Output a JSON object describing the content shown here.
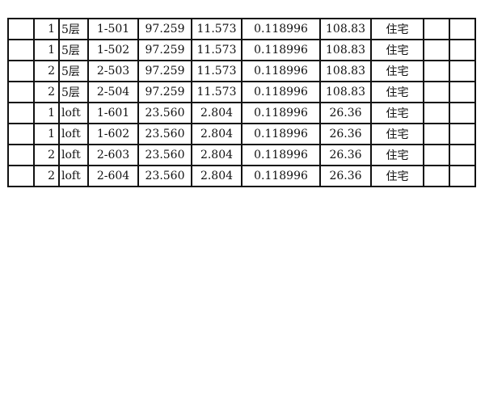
{
  "rows": [
    [
      "",
      "1",
      "5层",
      "1-501",
      "97.259",
      "11.573",
      "0.118996",
      "108.83",
      "住宅",
      "",
      ""
    ],
    [
      "",
      "1",
      "5层",
      "1-502",
      "97.259",
      "11.573",
      "0.118996",
      "108.83",
      "住宅",
      "",
      ""
    ],
    [
      "",
      "2",
      "5层",
      "2-503",
      "97.259",
      "11.573",
      "0.118996",
      "108.83",
      "住宅",
      "",
      ""
    ],
    [
      "",
      "2",
      "5层",
      "2-504",
      "97.259",
      "11.573",
      "0.118996",
      "108.83",
      "住宅",
      "",
      ""
    ],
    [
      "",
      "1",
      "loft",
      "1-601",
      "23.560",
      "2.804",
      "0.118996",
      "26.36",
      "住宅",
      "",
      ""
    ],
    [
      "",
      "1",
      "loft",
      "1-602",
      "23.560",
      "2.804",
      "0.118996",
      "26.36",
      "住宅",
      "",
      ""
    ],
    [
      "",
      "2",
      "loft",
      "2-603",
      "23.560",
      "2.804",
      "0.118996",
      "26.36",
      "住宅",
      "",
      ""
    ],
    [
      "",
      "2",
      "loft",
      "2-604",
      "23.560",
      "2.804",
      "0.118996",
      "26.36",
      "住宅",
      "",
      ""
    ]
  ]
}
